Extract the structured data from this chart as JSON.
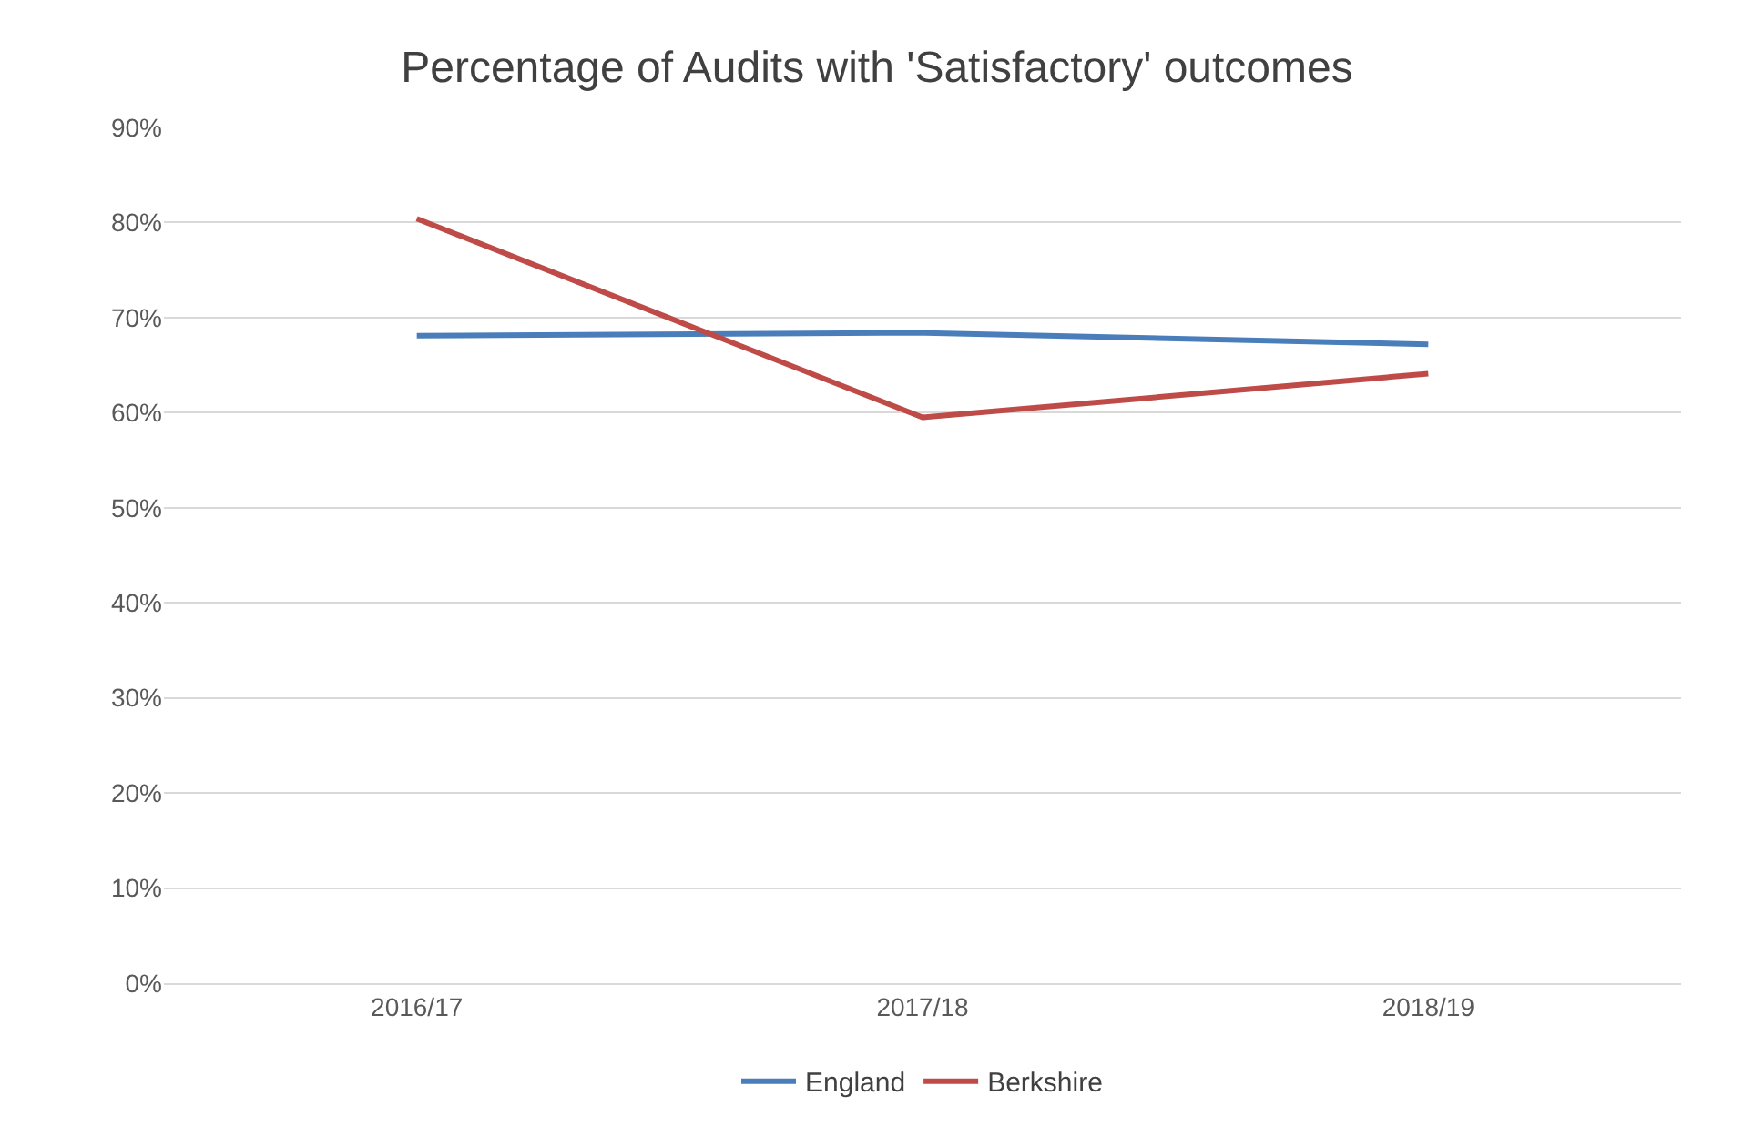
{
  "chart_data": {
    "type": "line",
    "title": "Percentage of Audits with 'Satisfactory' outcomes",
    "categories": [
      "2016/17",
      "2017/18",
      "2018/19"
    ],
    "series": [
      {
        "name": "England",
        "color": "#4a7ebb",
        "values": [
          68.1,
          68.4,
          67.2
        ]
      },
      {
        "name": "Berkshire",
        "color": "#be4b48",
        "values": [
          80.4,
          59.5,
          64.1
        ]
      }
    ],
    "ylim": [
      0,
      90
    ],
    "yticks": [
      {
        "value": 0,
        "label": "0%"
      },
      {
        "value": 10,
        "label": "10%"
      },
      {
        "value": 20,
        "label": "20%"
      },
      {
        "value": 30,
        "label": "30%"
      },
      {
        "value": 40,
        "label": "40%"
      },
      {
        "value": 50,
        "label": "50%"
      },
      {
        "value": 60,
        "label": "60%"
      },
      {
        "value": 70,
        "label": "70%"
      },
      {
        "value": 80,
        "label": "80%"
      },
      {
        "value": 90,
        "label": "90%"
      }
    ],
    "grid": "y",
    "legend": "bottom",
    "marker": "none",
    "line_style": "solid"
  }
}
